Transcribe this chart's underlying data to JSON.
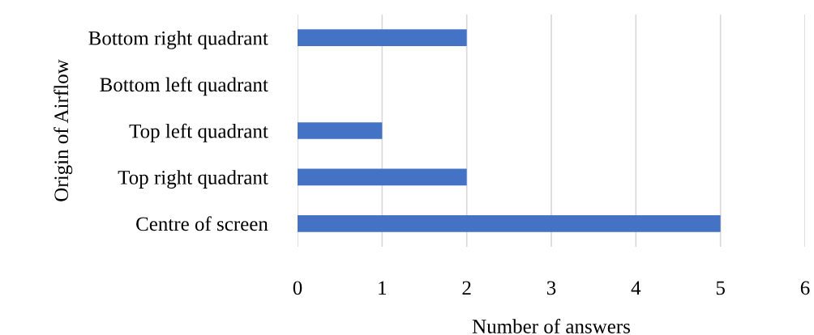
{
  "chart_data": {
    "type": "bar",
    "orientation": "horizontal",
    "xlabel": "Number of answers",
    "ylabel": "Origin of Airflow",
    "categories": [
      "Bottom right quadrant",
      "Bottom left quadrant",
      "Top left quadrant",
      "Top right quadrant",
      "Centre of screen"
    ],
    "values": [
      2,
      0,
      1,
      2,
      5
    ],
    "color": "#4472c4",
    "xlim": [
      0,
      6
    ],
    "xticks": [
      0,
      1,
      2,
      3,
      4,
      5,
      6
    ],
    "grid": "x",
    "legend": false
  }
}
